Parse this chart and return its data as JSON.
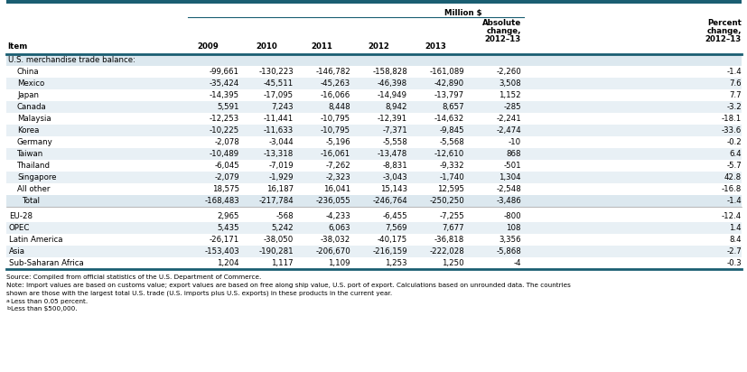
{
  "header_line": "Million $",
  "section_header": "U.S. merchandise trade balance:",
  "rows": [
    [
      "China",
      "-99,661",
      "-130,223",
      "-146,782",
      "-158,828",
      "-161,089",
      "-2,260",
      "-1.4"
    ],
    [
      "Mexico",
      "-35,424",
      "-45,511",
      "-45,263",
      "-46,398",
      "-42,890",
      "3,508",
      "7.6"
    ],
    [
      "Japan",
      "-14,395",
      "-17,095",
      "-16,066",
      "-14,949",
      "-13,797",
      "1,152",
      "7.7"
    ],
    [
      "Canada",
      "5,591",
      "7,243",
      "8,448",
      "8,942",
      "8,657",
      "-285",
      "-3.2"
    ],
    [
      "Malaysia",
      "-12,253",
      "-11,441",
      "-10,795",
      "-12,391",
      "-14,632",
      "-2,241",
      "-18.1"
    ],
    [
      "Korea",
      "-10,225",
      "-11,633",
      "-10,795",
      "-7,371",
      "-9,845",
      "-2,474",
      "-33.6"
    ],
    [
      "Germany",
      "-2,078",
      "-3,044",
      "-5,196",
      "-5,558",
      "-5,568",
      "-10",
      "-0.2"
    ],
    [
      "Taiwan",
      "-10,489",
      "-13,318",
      "-16,061",
      "-13,478",
      "-12,610",
      "868",
      "6.4"
    ],
    [
      "Thailand",
      "-6,045",
      "-7,019",
      "-7,262",
      "-8,831",
      "-9,332",
      "-501",
      "-5.7"
    ],
    [
      "Singapore",
      "-2,079",
      "-1,929",
      "-2,323",
      "-3,043",
      "-1,740",
      "1,304",
      "42.8"
    ],
    [
      "All other",
      "18,575",
      "16,187",
      "16,041",
      "15,143",
      "12,595",
      "-2,548",
      "-16.8"
    ],
    [
      "Total",
      "-168,483",
      "-217,784",
      "-236,055",
      "-246,764",
      "-250,250",
      "-3,486",
      "-1.4"
    ]
  ],
  "group_rows": [
    [
      "EU-28",
      "2,965",
      "-568",
      "-4,233",
      "-6,455",
      "-7,255",
      "-800",
      "-12.4"
    ],
    [
      "OPEC",
      "5,435",
      "5,242",
      "6,063",
      "7,569",
      "7,677",
      "108",
      "1.4"
    ],
    [
      "Latin America",
      "-26,171",
      "-38,050",
      "-38,032",
      "-40,175",
      "-36,818",
      "3,356",
      "8.4"
    ],
    [
      "Asia",
      "-153,403",
      "-190,281",
      "-206,670",
      "-216,159",
      "-222,028",
      "-5,868",
      "-2.7"
    ],
    [
      "Sub-Saharan Africa",
      "1,204",
      "1,117",
      "1,109",
      "1,253",
      "1,250",
      "-4",
      "-0.3"
    ]
  ],
  "source_text": "Source: Compiled from official statistics of the U.S. Department of Commerce.",
  "note_text": "Note: Import values are based on customs value; export values are based on free along ship value, U.S. port of export. Calculations based on unrounded data. The countries\nshown are those with the largest total U.S. trade (U.S. imports plus U.S. exports) in these products in the current year.",
  "footnote_a": "aLess than 0.05 percent.",
  "footnote_b": "bLess than $500,000.",
  "teal_color": "#1a5e72",
  "section_header_bg": "#dce8ef",
  "alt_row_bg": "#e8f0f5",
  "white_row_bg": "#ffffff",
  "total_row_bg": "#dce8ef",
  "font_size": 6.2,
  "header_font_size": 6.2
}
